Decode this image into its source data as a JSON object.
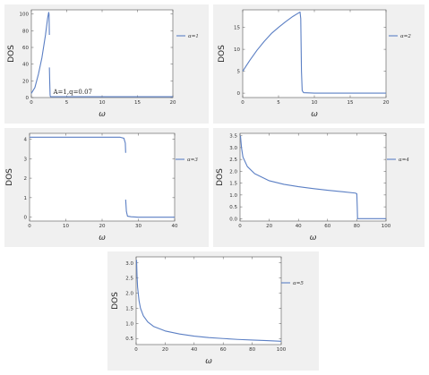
{
  "chart_data": [
    {
      "type": "line",
      "ylabel": "DOS",
      "xlabel": "ω",
      "xlim": [
        0,
        20
      ],
      "ylim": [
        0,
        105
      ],
      "x_ticks": [
        0,
        5,
        10,
        15,
        20
      ],
      "y_ticks": [
        0,
        20,
        40,
        60,
        80,
        100
      ],
      "annotation": "A=1,q=0.07",
      "series": [
        {
          "name": "α=1",
          "color": "#5b7fc4",
          "segments": [
            [
              [
                0,
                5
              ],
              [
                0.5,
                12
              ],
              [
                1.0,
                28
              ],
              [
                1.5,
                48
              ],
              [
                2.0,
                75
              ],
              [
                2.3,
                95
              ],
              [
                2.45,
                102
              ],
              [
                2.5,
                100
              ],
              [
                2.55,
                75
              ]
            ],
            [
              [
                2.55,
                36
              ],
              [
                2.6,
                18
              ],
              [
                2.65,
                3
              ],
              [
                2.7,
                1
              ],
              [
                5,
                1
              ],
              [
                10,
                1
              ],
              [
                15,
                1
              ],
              [
                20,
                1
              ]
            ]
          ]
        }
      ]
    },
    {
      "type": "line",
      "ylabel": "DOS",
      "xlabel": "ω",
      "xlim": [
        0,
        20
      ],
      "ylim": [
        -1,
        19
      ],
      "x_ticks": [
        0,
        5,
        10,
        15,
        20
      ],
      "y_ticks": [
        0,
        5,
        10,
        15
      ],
      "series": [
        {
          "name": "α=2",
          "color": "#5b7fc4",
          "segments": [
            [
              [
                0,
                5
              ],
              [
                1,
                7.5
              ],
              [
                2,
                9.8
              ],
              [
                3,
                11.8
              ],
              [
                4,
                13.6
              ],
              [
                5,
                15.0
              ],
              [
                6,
                16.3
              ],
              [
                7,
                17.5
              ],
              [
                7.8,
                18.3
              ],
              [
                8.0,
                18.5
              ],
              [
                8.1,
                17
              ],
              [
                8.2,
                5
              ],
              [
                8.3,
                0.6
              ],
              [
                8.5,
                0.1
              ],
              [
                10,
                0
              ],
              [
                15,
                0
              ],
              [
                20,
                0
              ]
            ]
          ]
        }
      ]
    },
    {
      "type": "line",
      "ylabel": "DOS",
      "xlabel": "ω",
      "xlim": [
        0,
        40
      ],
      "ylim": [
        -0.2,
        4.3
      ],
      "x_ticks": [
        0,
        10,
        20,
        30,
        40
      ],
      "y_ticks": [
        0,
        1,
        2,
        3,
        4
      ],
      "series": [
        {
          "name": "α=3",
          "color": "#5b7fc4",
          "segments": [
            [
              [
                0,
                4.1
              ],
              [
                10,
                4.1
              ],
              [
                20,
                4.1
              ],
              [
                25,
                4.1
              ],
              [
                26,
                4.05
              ],
              [
                26.4,
                3.8
              ],
              [
                26.5,
                3.3
              ]
            ],
            [
              [
                26.5,
                0.9
              ],
              [
                26.7,
                0.3
              ],
              [
                27,
                0.05
              ],
              [
                28,
                0.02
              ],
              [
                30,
                0
              ],
              [
                40,
                0
              ]
            ]
          ]
        }
      ]
    },
    {
      "type": "line",
      "ylabel": "DOS",
      "xlabel": "ω",
      "xlim": [
        0,
        100
      ],
      "ylim": [
        -0.1,
        3.6
      ],
      "x_ticks": [
        0,
        20,
        40,
        60,
        80,
        100
      ],
      "y_ticks": [
        0.0,
        0.5,
        1.0,
        1.5,
        2.0,
        2.5,
        3.0,
        3.5
      ],
      "series": [
        {
          "name": "α=4",
          "color": "#5b7fc4",
          "segments": [
            [
              [
                0.3,
                3.5
              ],
              [
                1,
                3.0
              ],
              [
                2,
                2.6
              ],
              [
                5,
                2.2
              ],
              [
                10,
                1.9
              ],
              [
                20,
                1.6
              ],
              [
                30,
                1.45
              ],
              [
                40,
                1.35
              ],
              [
                50,
                1.27
              ],
              [
                60,
                1.2
              ],
              [
                70,
                1.14
              ],
              [
                79,
                1.08
              ],
              [
                80,
                1.05
              ],
              [
                80.3,
                0.5
              ],
              [
                80.5,
                0
              ],
              [
                100,
                0
              ]
            ]
          ]
        }
      ]
    },
    {
      "type": "line",
      "ylabel": "DOS",
      "xlabel": "ω",
      "xlim": [
        0,
        100
      ],
      "ylim": [
        0.3,
        3.2
      ],
      "x_ticks": [
        0,
        20,
        40,
        60,
        80,
        100
      ],
      "y_ticks": [
        0.5,
        1.0,
        1.5,
        2.0,
        2.5,
        3.0
      ],
      "series": [
        {
          "name": "α=5",
          "color": "#5b7fc4",
          "segments": [
            [
              [
                0.3,
                3.1
              ],
              [
                0.6,
                2.6
              ],
              [
                1,
                2.2
              ],
              [
                2,
                1.75
              ],
              [
                3,
                1.5
              ],
              [
                5,
                1.25
              ],
              [
                8,
                1.05
              ],
              [
                12,
                0.9
              ],
              [
                20,
                0.75
              ],
              [
                30,
                0.65
              ],
              [
                40,
                0.58
              ],
              [
                50,
                0.53
              ],
              [
                60,
                0.5
              ],
              [
                70,
                0.47
              ],
              [
                80,
                0.45
              ],
              [
                90,
                0.43
              ],
              [
                100,
                0.41
              ]
            ]
          ]
        }
      ]
    }
  ]
}
